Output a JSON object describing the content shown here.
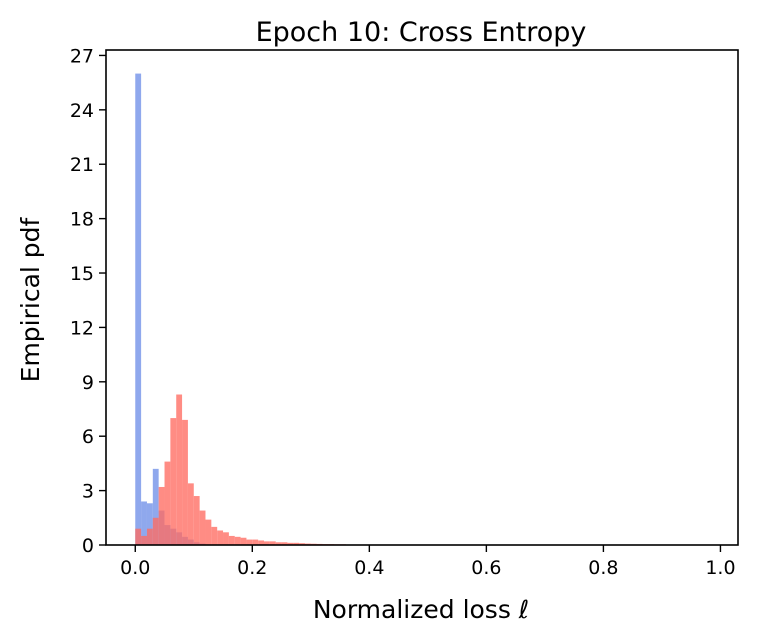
{
  "chart_data": {
    "type": "bar",
    "title": "Epoch 10: Cross Entropy",
    "xlabel": "Normalized loss ℓ",
    "ylabel": "Empirical pdf",
    "xlim": [
      -0.05,
      1.03
    ],
    "ylim": [
      0,
      27.3
    ],
    "xticks": [
      "0.0",
      "0.2",
      "0.4",
      "0.6",
      "0.8",
      "1.0"
    ],
    "yticks": [
      "0",
      "3",
      "6",
      "9",
      "12",
      "15",
      "18",
      "21",
      "24",
      "27"
    ],
    "grid": false,
    "legend": "none",
    "bin_width": 0.01,
    "series": [
      {
        "color": "#6f8fe8",
        "bins": [
          [
            0.0,
            26.0
          ],
          [
            0.01,
            2.4
          ],
          [
            0.02,
            2.3
          ],
          [
            0.03,
            4.2
          ],
          [
            0.04,
            1.9
          ],
          [
            0.05,
            1.1
          ],
          [
            0.06,
            0.9
          ],
          [
            0.07,
            0.7
          ],
          [
            0.08,
            0.45
          ],
          [
            0.09,
            0.3
          ],
          [
            0.1,
            0.15
          ],
          [
            0.11,
            0.08
          ]
        ]
      },
      {
        "color": "#ff6b62",
        "bins": [
          [
            0.0,
            0.9
          ],
          [
            0.01,
            0.5
          ],
          [
            0.02,
            0.9
          ],
          [
            0.03,
            1.5
          ],
          [
            0.04,
            3.2
          ],
          [
            0.05,
            4.6
          ],
          [
            0.06,
            7.0
          ],
          [
            0.07,
            8.3
          ],
          [
            0.08,
            6.9
          ],
          [
            0.09,
            3.4
          ],
          [
            0.1,
            2.7
          ],
          [
            0.11,
            1.9
          ],
          [
            0.12,
            1.4
          ],
          [
            0.13,
            1.0
          ],
          [
            0.14,
            0.8
          ],
          [
            0.15,
            0.7
          ],
          [
            0.16,
            0.5
          ],
          [
            0.17,
            0.45
          ],
          [
            0.18,
            0.4
          ],
          [
            0.19,
            0.3
          ],
          [
            0.2,
            0.3
          ],
          [
            0.21,
            0.25
          ],
          [
            0.22,
            0.2
          ],
          [
            0.23,
            0.2
          ],
          [
            0.24,
            0.15
          ],
          [
            0.25,
            0.15
          ],
          [
            0.26,
            0.12
          ],
          [
            0.27,
            0.12
          ],
          [
            0.28,
            0.1
          ],
          [
            0.29,
            0.08
          ],
          [
            0.3,
            0.07
          ],
          [
            0.31,
            0.06
          ],
          [
            0.32,
            0.05
          ],
          [
            0.33,
            0.05
          ],
          [
            0.34,
            0.04
          ],
          [
            0.35,
            0.04
          ]
        ]
      }
    ]
  }
}
